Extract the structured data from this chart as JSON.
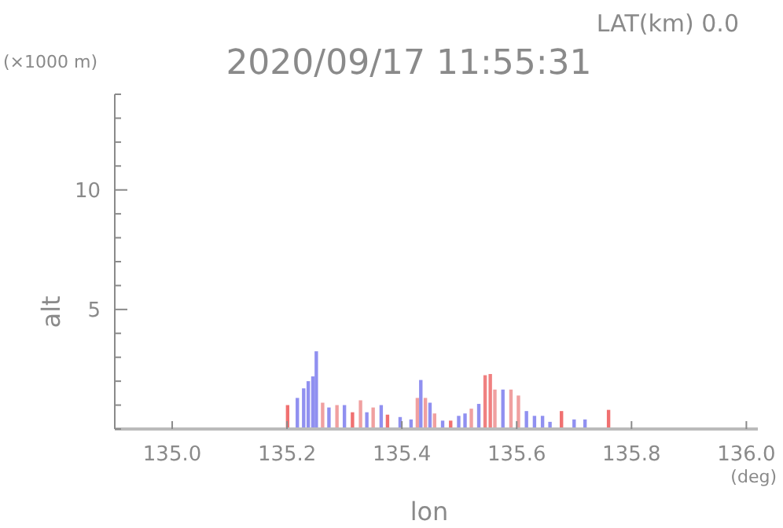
{
  "chart_data": {
    "type": "bar",
    "title": "2020/09/17 11:55:31",
    "xlabel": "lon",
    "ylabel": "alt",
    "annotations": [
      "LAT(km) 0.0",
      "(×1000 m)",
      "(deg)"
    ],
    "x": [
      135.201,
      135.218,
      135.229,
      135.237,
      135.245,
      135.251,
      135.262,
      135.273,
      135.287,
      135.3,
      135.314,
      135.328,
      135.339,
      135.35,
      135.364,
      135.375,
      135.397,
      135.416,
      135.427,
      135.433,
      135.441,
      135.449,
      135.457,
      135.471,
      135.485,
      135.499,
      135.51,
      135.521,
      135.534,
      135.545,
      135.554,
      135.562,
      135.576,
      135.59,
      135.603,
      135.617,
      135.631,
      135.645,
      135.658,
      135.678,
      135.7,
      135.719,
      135.76
    ],
    "values": [
      1.0,
      1.3,
      1.7,
      2.0,
      2.2,
      3.25,
      1.1,
      0.9,
      1.0,
      1.0,
      0.7,
      1.2,
      0.7,
      0.9,
      1.0,
      0.6,
      0.5,
      0.4,
      1.3,
      2.05,
      1.3,
      1.1,
      0.65,
      0.35,
      0.35,
      0.55,
      0.65,
      0.85,
      1.05,
      2.25,
      2.3,
      1.65,
      1.65,
      1.65,
      1.4,
      0.75,
      0.55,
      0.55,
      0.3,
      0.75,
      0.4,
      0.4,
      0.8
    ],
    "colors": [
      "#f07070",
      "#9090f0",
      "#9090f0",
      "#9090f0",
      "#9090f0",
      "#9090f0",
      "#f0a0a0",
      "#9090f0",
      "#f0a0a0",
      "#9090f0",
      "#f07070",
      "#f0a0a0",
      "#9090f0",
      "#f0a0a0",
      "#9090f0",
      "#f07070",
      "#9090f0",
      "#9090f0",
      "#f0a0a0",
      "#9090f0",
      "#f0a0a0",
      "#9090f0",
      "#f0a0a0",
      "#9090f0",
      "#f07070",
      "#9090f0",
      "#9090f0",
      "#f0a0a0",
      "#9090f0",
      "#f08080",
      "#f08080",
      "#f0a0a0",
      "#9090f0",
      "#f0a0a0",
      "#f0a0a0",
      "#9090f0",
      "#9090f0",
      "#9090f0",
      "#9090f0",
      "#f07070",
      "#9090f0",
      "#9090f0",
      "#f07070"
    ],
    "xlim": [
      134.9,
      136.02
    ],
    "xticks": [
      {
        "value": 135.0,
        "label": "135.0"
      },
      {
        "value": 135.2,
        "label": "135.2"
      },
      {
        "value": 135.4,
        "label": "135.4"
      },
      {
        "value": 135.6,
        "label": "135.6"
      },
      {
        "value": 135.8,
        "label": "135.8"
      },
      {
        "value": 136.0,
        "label": "136.0"
      }
    ],
    "ylim": [
      0,
      14
    ],
    "yticks": [
      {
        "value": 0,
        "label": null
      },
      {
        "value": 1,
        "label": null
      },
      {
        "value": 2,
        "label": null
      },
      {
        "value": 3,
        "label": null
      },
      {
        "value": 4,
        "label": null
      },
      5,
      {
        "value": 6,
        "label": null
      },
      {
        "value": 7,
        "label": null
      },
      {
        "value": 8,
        "label": null
      },
      {
        "value": 9,
        "label": null
      },
      10,
      {
        "value": 11,
        "label": null
      },
      {
        "value": 12,
        "label": null
      },
      {
        "value": 13,
        "label": null
      },
      {
        "value": 14,
        "label": null
      }
    ],
    "grid": false
  }
}
